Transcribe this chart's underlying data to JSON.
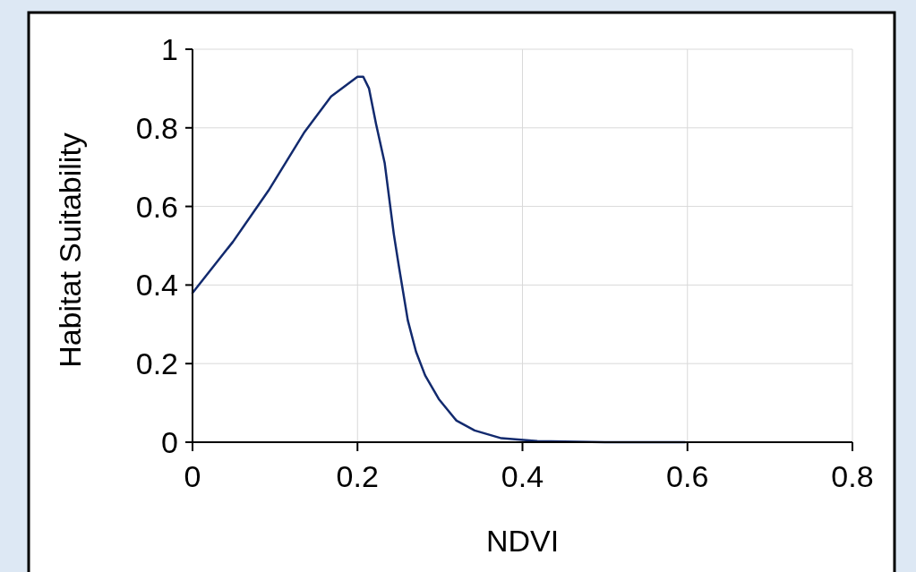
{
  "chart_data": {
    "type": "line",
    "xlabel": "NDVI",
    "ylabel": "Habitat Suitability",
    "xlim": [
      0,
      0.8
    ],
    "xticks": [
      0,
      0.2,
      0.4,
      0.6,
      0.8
    ],
    "ylim": [
      0,
      1
    ],
    "yticks": [
      0,
      0.2,
      0.4,
      0.6,
      0.8,
      1
    ],
    "grid": true,
    "marker": "none",
    "line_style": "solid",
    "series": [
      {
        "color": "#122a6e",
        "x": [
          0,
          0.049,
          0.092,
          0.136,
          0.168,
          0.2,
          0.207,
          0.214,
          0.2225,
          0.233,
          0.244,
          0.25,
          0.261,
          0.271,
          0.282,
          0.2985,
          0.32,
          0.342,
          0.3745,
          0.418,
          0.5,
          0.597
        ],
        "values": [
          0.38,
          0.51,
          0.64,
          0.79,
          0.88,
          0.93,
          0.93,
          0.9,
          0.81,
          0.71,
          0.53,
          0.45,
          0.31,
          0.23,
          0.17,
          0.11,
          0.055,
          0.03,
          0.01,
          0.003,
          0,
          0
        ]
      }
    ]
  }
}
